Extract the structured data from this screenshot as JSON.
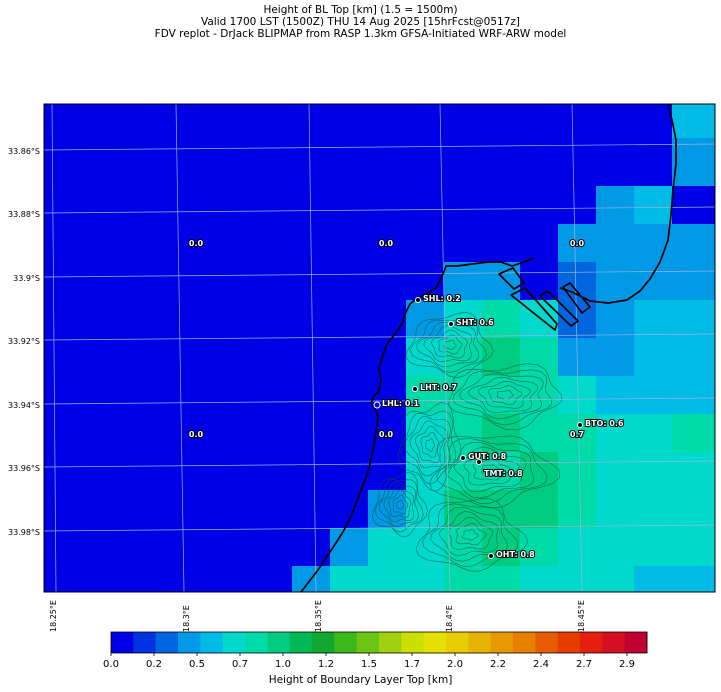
{
  "header": {
    "line1": "Height of BL Top [km] (1.5 = 1500m)",
    "line2": "Valid 1700 LST (1500Z) THU 14 Aug 2025 [15hrFcst@0517z]",
    "line3": "FDV replot - DrJack BLIPMAP from RASP 1.3km GFSA-Initiated WRF-ARW model"
  },
  "map": {
    "lat_labels": [
      "33.86°S",
      "33.88°S",
      "33.9°S",
      "33.92°S",
      "33.94°S",
      "33.96°S",
      "33.98°S"
    ],
    "lon_labels": [
      "18.25°E",
      "18.3°E",
      "18.35°E",
      "18.4°E",
      "18.45°E"
    ],
    "grid_values": [
      "0.0",
      "0.0",
      "0.0",
      "0.0",
      "0.0",
      "0.7"
    ],
    "stations": [
      {
        "code": "SHL",
        "label": "SHL: 0.2",
        "value": 0.2,
        "marker": "filled"
      },
      {
        "code": "SHT",
        "label": "SHT: 0.6",
        "value": 0.6,
        "marker": "filled"
      },
      {
        "code": "LHT",
        "label": "LHT: 0.7",
        "value": 0.7,
        "marker": "filled"
      },
      {
        "code": "LHL",
        "label": "LHL: 0.1",
        "value": 0.1,
        "marker": "open"
      },
      {
        "code": "BTO",
        "label": "BTO: 0.6",
        "value": 0.6,
        "marker": "filled"
      },
      {
        "code": "GUT",
        "label": "GUT: 0.8",
        "value": 0.8,
        "marker": "filled"
      },
      {
        "code": "TMT",
        "label": "TMT: 0.8",
        "value": 0.8,
        "marker": "filled"
      },
      {
        "code": "OHT",
        "label": "OHT: 0.8",
        "value": 0.8,
        "marker": "filled"
      }
    ]
  },
  "colorbar": {
    "caption": "Height of Boundary Layer Top [km]",
    "ticks": [
      "0.0",
      "0.2",
      "0.5",
      "0.7",
      "1.0",
      "1.2",
      "1.5",
      "1.7",
      "2.0",
      "2.2",
      "2.4",
      "2.7",
      "2.9"
    ],
    "colors": [
      "#0000e6",
      "#0033e0",
      "#0066e0",
      "#0099e6",
      "#00bbe6",
      "#00d9cc",
      "#00d9a8",
      "#00cc80",
      "#00b855",
      "#12a830",
      "#3cb81c",
      "#6cc414",
      "#a0d010",
      "#cce000",
      "#e6e000",
      "#e6cc00",
      "#e6b400",
      "#e69900",
      "#e68000",
      "#e65c00",
      "#e63c00",
      "#e61e0f",
      "#d41020",
      "#c00030"
    ]
  },
  "palette": {
    "ocean": "#0000e6",
    "grid_line": "#9ab3e6",
    "coast": "#000000",
    "contour": "#1a4a3a"
  }
}
